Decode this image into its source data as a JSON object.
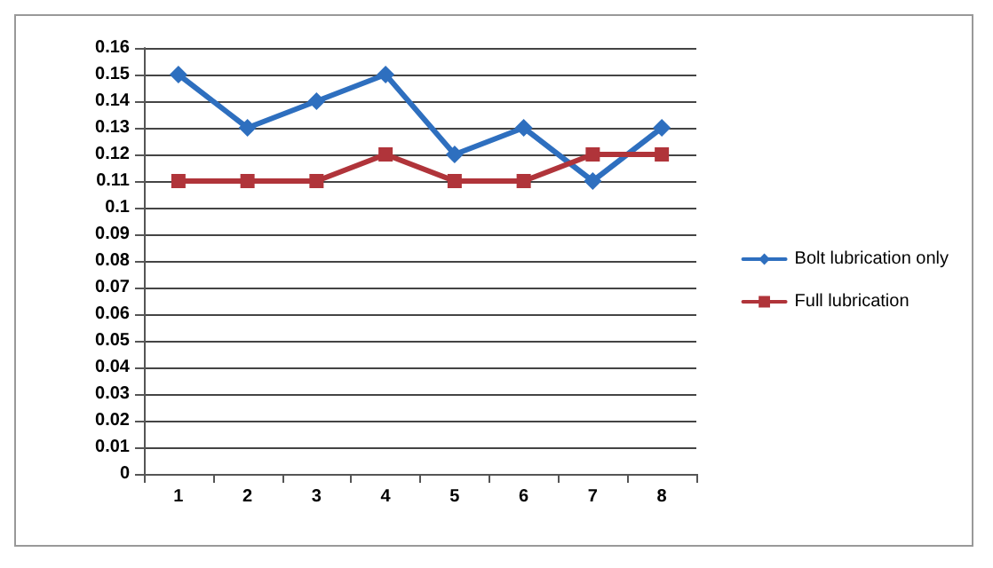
{
  "chart_data": {
    "type": "line",
    "categories": [
      "1",
      "2",
      "3",
      "4",
      "5",
      "6",
      "7",
      "8"
    ],
    "series": [
      {
        "name": "Bolt lubrication only",
        "color": "#2e6fbf",
        "marker": "diamond",
        "values": [
          0.15,
          0.13,
          0.14,
          0.15,
          0.12,
          0.13,
          0.11,
          0.13
        ]
      },
      {
        "name": "Full lubrication",
        "color": "#b0343a",
        "marker": "square",
        "values": [
          0.11,
          0.11,
          0.11,
          0.12,
          0.11,
          0.11,
          0.12,
          0.12
        ]
      }
    ],
    "ylim": [
      0,
      0.16
    ],
    "yticks": [
      0,
      0.01,
      0.02,
      0.03,
      0.04,
      0.05,
      0.06,
      0.07,
      0.08,
      0.09,
      0.1,
      0.11,
      0.12,
      0.13,
      0.14,
      0.15,
      0.16
    ],
    "grid": "y",
    "legend": "right"
  }
}
